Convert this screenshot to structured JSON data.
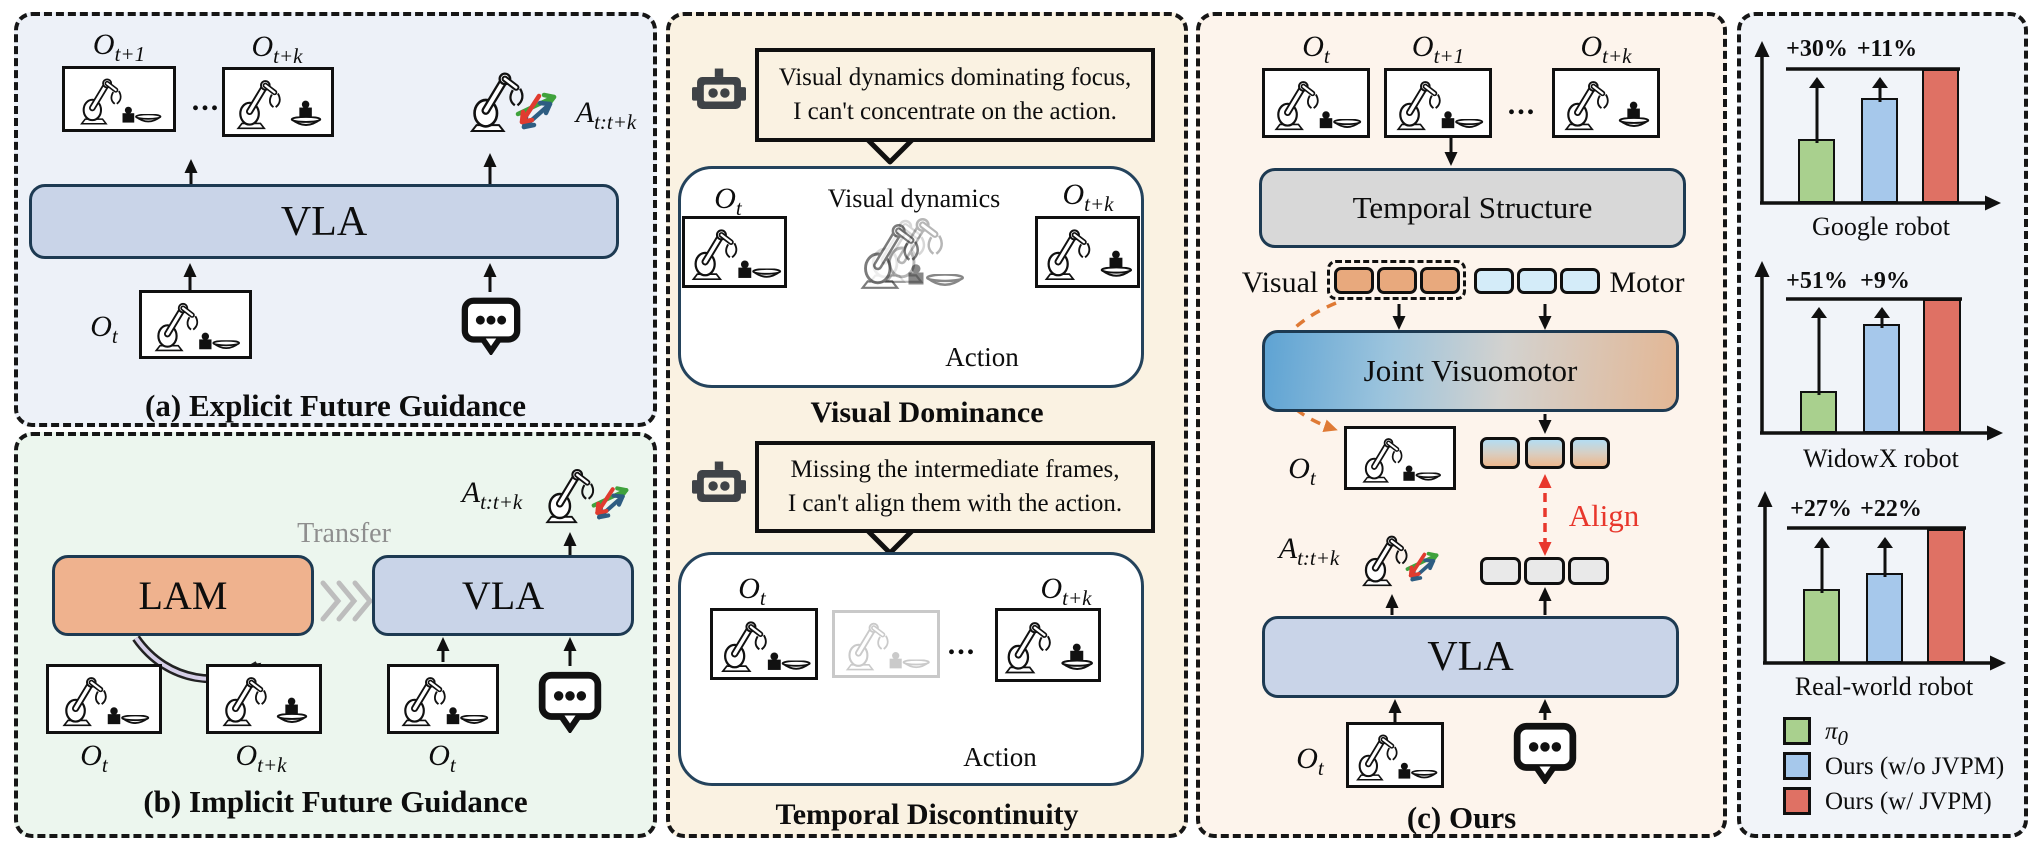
{
  "colors": {
    "panel_a_bg": "#edf1f8",
    "panel_b_bg": "#ecf6ee",
    "panel_mid_bg": "#faf2e2",
    "panel_c_bg": "#fdf4ec",
    "panel_r_bg": "#f1f4f9",
    "border_navy": "#1d3a52",
    "box_blue": "#c9d4e8",
    "box_orange": "#efb28e",
    "box_gray": "#d8d8d8",
    "token_orange": "#e8a97d",
    "token_blue": "#d4ecf9",
    "token_gray": "#e9e9e9",
    "bar_green": "#a9d08e",
    "bar_blue": "#a6c8eb",
    "bar_red": "#df7164",
    "accent_red": "#e8372c",
    "orange_arrow": "#df7a35"
  },
  "icons": {
    "robot_head": "robot-head",
    "speech_bubble": "speech-bubble-ellipsis",
    "robot_arm": "robot-arm-lineart",
    "action_arrows": "rgb-action-arrows",
    "transfer_chevrons": "triple-chevron-right"
  },
  "math": {
    "O_t": {
      "base": "O",
      "sub": "t"
    },
    "O_t1": {
      "base": "O",
      "sub": "t+1"
    },
    "O_tk": {
      "base": "O",
      "sub": "t+k"
    },
    "A": {
      "base": "A",
      "sub": "t:t+k"
    },
    "dots": "..."
  },
  "panel_a": {
    "caption": "(a) Explicit Future Guidance",
    "vla": "VLA"
  },
  "panel_b": {
    "caption": "(b) Implicit Future Guidance",
    "lam": "LAM",
    "vla": "VLA",
    "transfer": "Transfer"
  },
  "panel_mid": {
    "bubble1": [
      "Visual dynamics dominating focus,",
      "I can't concentrate on the action."
    ],
    "label_visual_dynamics": "Visual dynamics",
    "label_action": "Action",
    "caption_top": "Visual Dominance",
    "bubble2": [
      "Missing the intermediate frames,",
      "I can't align them with the action."
    ],
    "caption_bottom": "Temporal Discontinuity"
  },
  "panel_c": {
    "caption": "(c) Ours",
    "temporal_structure": "Temporal Structure",
    "visual": "Visual",
    "motor": "Motor",
    "joint_visuomotor": "Joint Visuomotor",
    "align": "Align",
    "vla": "VLA"
  },
  "chart_data": [
    {
      "type": "bar",
      "title": "Google robot",
      "categories": [
        "π0",
        "Ours (w/o JVPM)",
        "Ours (w/ JVPM)"
      ],
      "values": [
        48,
        78,
        100
      ],
      "annotations": [
        "+30%",
        "+11%"
      ],
      "ylim": [
        0,
        100
      ],
      "grid": false,
      "note": "unlabeled axes; bar heights relative to tallest bar = 100"
    },
    {
      "type": "bar",
      "title": "WidowX robot",
      "categories": [
        "π0",
        "Ours (w/o JVPM)",
        "Ours (w/ JVPM)"
      ],
      "values": [
        31,
        81,
        100
      ],
      "annotations": [
        "+51%",
        "+9%"
      ],
      "ylim": [
        0,
        100
      ],
      "grid": false,
      "note": "unlabeled axes; bar heights relative to tallest bar = 100"
    },
    {
      "type": "bar",
      "title": "Real-world robot",
      "categories": [
        "π0",
        "Ours (w/o JVPM)",
        "Ours (w/ JVPM)"
      ],
      "values": [
        55,
        67,
        100
      ],
      "annotations": [
        "+27%",
        "+22%"
      ],
      "ylim": [
        0,
        100
      ],
      "grid": false,
      "note": "unlabeled axes; bar heights relative to tallest bar = 100"
    }
  ],
  "legend": {
    "position": "bottom-right",
    "items": [
      {
        "label_base": "π",
        "label_sub": "0",
        "color": "#a9d08e"
      },
      {
        "label": "Ours (w/o JVPM)",
        "color": "#a6c8eb"
      },
      {
        "label": "Ours (w/ JVPM)",
        "color": "#df7164"
      }
    ]
  }
}
